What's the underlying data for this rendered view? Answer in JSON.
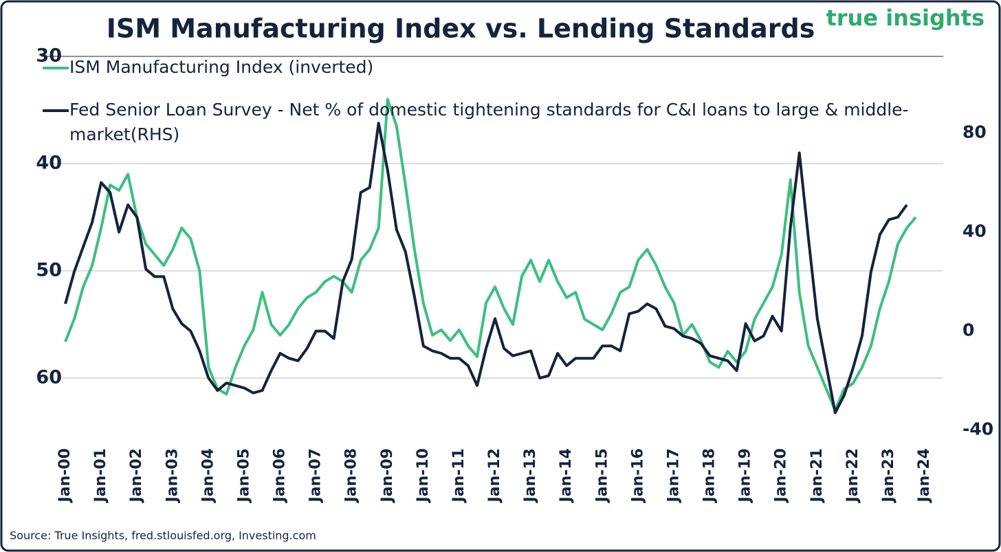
{
  "chart_data": {
    "type": "line",
    "title": "ISM Manufacturing Index vs. Lending Standards",
    "logo": "true insights",
    "source": "Source: True Insights, fred.stlouisfed.org, Investing.com",
    "x": [
      2000,
      2000.25,
      2000.5,
      2000.75,
      2001,
      2001.25,
      2001.5,
      2001.75,
      2002,
      2002.25,
      2002.5,
      2002.75,
      2003,
      2003.25,
      2003.5,
      2003.75,
      2004,
      2004.25,
      2004.5,
      2004.75,
      2005,
      2005.25,
      2005.5,
      2005.75,
      2006,
      2006.25,
      2006.5,
      2006.75,
      2007,
      2007.25,
      2007.5,
      2007.75,
      2008,
      2008.25,
      2008.5,
      2008.75,
      2009,
      2009.25,
      2009.5,
      2009.75,
      2010,
      2010.25,
      2010.5,
      2010.75,
      2011,
      2011.25,
      2011.5,
      2011.75,
      2012,
      2012.25,
      2012.5,
      2012.75,
      2013,
      2013.25,
      2013.5,
      2013.75,
      2014,
      2014.25,
      2014.5,
      2014.75,
      2015,
      2015.25,
      2015.5,
      2015.75,
      2016,
      2016.25,
      2016.5,
      2016.75,
      2017,
      2017.25,
      2017.5,
      2017.75,
      2018,
      2018.25,
      2018.5,
      2018.75,
      2019,
      2019.25,
      2019.5,
      2019.75,
      2020,
      2020.25,
      2020.5,
      2020.75,
      2021,
      2021.25,
      2021.5,
      2021.75,
      2022,
      2022.25,
      2022.5,
      2022.75,
      2023,
      2023.25,
      2023.5,
      2023.75
    ],
    "series": [
      {
        "name": "ISM Manufacturing Index (inverted)",
        "color": "#3dbf80",
        "axis": "y",
        "values": [
          56.6,
          54.5,
          51.5,
          49.5,
          46,
          42,
          42.5,
          41,
          45,
          47.5,
          48.5,
          49.5,
          48,
          46,
          47,
          50,
          59,
          61,
          61.5,
          59,
          57,
          55.5,
          52,
          55,
          56,
          55,
          53.5,
          52.5,
          52,
          51,
          50.5,
          51,
          52,
          49,
          48,
          46,
          34,
          36.5,
          42,
          48,
          53,
          56,
          55.5,
          56.5,
          55.5,
          57,
          58,
          53,
          51.5,
          53.5,
          55,
          50.5,
          49,
          51,
          49,
          51,
          52.5,
          52,
          54.5,
          55,
          55.5,
          54,
          52,
          51.5,
          49,
          48,
          49.5,
          51.5,
          53,
          56,
          55,
          56.5,
          58.5,
          59,
          57.5,
          58.5,
          57.5,
          54.5,
          53,
          51.5,
          48.5,
          41.5,
          52,
          57,
          59,
          61,
          63,
          61,
          60.5,
          59,
          57,
          53.5,
          51,
          47.5,
          46,
          45
        ]
      },
      {
        "name": "Fed Senior Loan Survey - Net % of domestic tightening standards for C&I loans to large & middle-market(RHS)",
        "color": "#15233d",
        "axis": "y2",
        "values": [
          11,
          24,
          34,
          44,
          60,
          56,
          40,
          51,
          46,
          25,
          22,
          22,
          9,
          3,
          0,
          -8,
          -19,
          -24,
          -21,
          -22,
          -23,
          -25,
          -24,
          -16,
          -9,
          -11,
          -12,
          -7,
          0,
          0,
          -3,
          20,
          29,
          56,
          58,
          84,
          65,
          41,
          32,
          14,
          -6,
          -8,
          -9,
          -11,
          -11,
          -14,
          -22,
          -7,
          5,
          -7,
          -10,
          -9,
          -8,
          -19,
          -18,
          -9,
          -14,
          -11,
          -11,
          -11,
          -6,
          -6,
          -8,
          7,
          8,
          11,
          9,
          2,
          1,
          -2,
          -3,
          -5,
          -10,
          -11,
          -12,
          -16,
          3,
          -4,
          -2,
          6,
          0,
          42,
          72,
          38,
          5,
          -14,
          -33,
          -26,
          -15,
          -2,
          24,
          39,
          45,
          46,
          51,
          null
        ]
      }
    ],
    "xlim": [
      2000,
      2024
    ],
    "xticks": [
      {
        "value": 2000,
        "label": "Jan-00"
      },
      {
        "value": 2001,
        "label": "Jan-01"
      },
      {
        "value": 2002,
        "label": "Jan-02"
      },
      {
        "value": 2003,
        "label": "Jan-03"
      },
      {
        "value": 2004,
        "label": "Jan-04"
      },
      {
        "value": 2005,
        "label": "Jan-05"
      },
      {
        "value": 2006,
        "label": "Jan-06"
      },
      {
        "value": 2007,
        "label": "Jan-07"
      },
      {
        "value": 2008,
        "label": "Jan-08"
      },
      {
        "value": 2009,
        "label": "Jan-09"
      },
      {
        "value": 2010,
        "label": "Jan-10"
      },
      {
        "value": 2011,
        "label": "Jan-11"
      },
      {
        "value": 2012,
        "label": "Jan-12"
      },
      {
        "value": 2013,
        "label": "Jan-13"
      },
      {
        "value": 2014,
        "label": "Jan-14"
      },
      {
        "value": 2015,
        "label": "Jan-15"
      },
      {
        "value": 2016,
        "label": "Jan-16"
      },
      {
        "value": 2017,
        "label": "Jan-17"
      },
      {
        "value": 2018,
        "label": "Jan-18"
      },
      {
        "value": 2019,
        "label": "Jan-19"
      },
      {
        "value": 2020,
        "label": "Jan-20"
      },
      {
        "value": 2021,
        "label": "Jan-21"
      },
      {
        "value": 2022,
        "label": "Jan-22"
      },
      {
        "value": 2023,
        "label": "Jan-23"
      },
      {
        "value": 2024,
        "label": "Jan-24"
      }
    ],
    "ylim": [
      30,
      66
    ],
    "y_inverted": true,
    "yticks": [
      30,
      40,
      50,
      60
    ],
    "y2lim": [
      -45,
      111
    ],
    "y2ticks": [
      -40,
      0,
      40,
      80
    ],
    "grid": true
  }
}
